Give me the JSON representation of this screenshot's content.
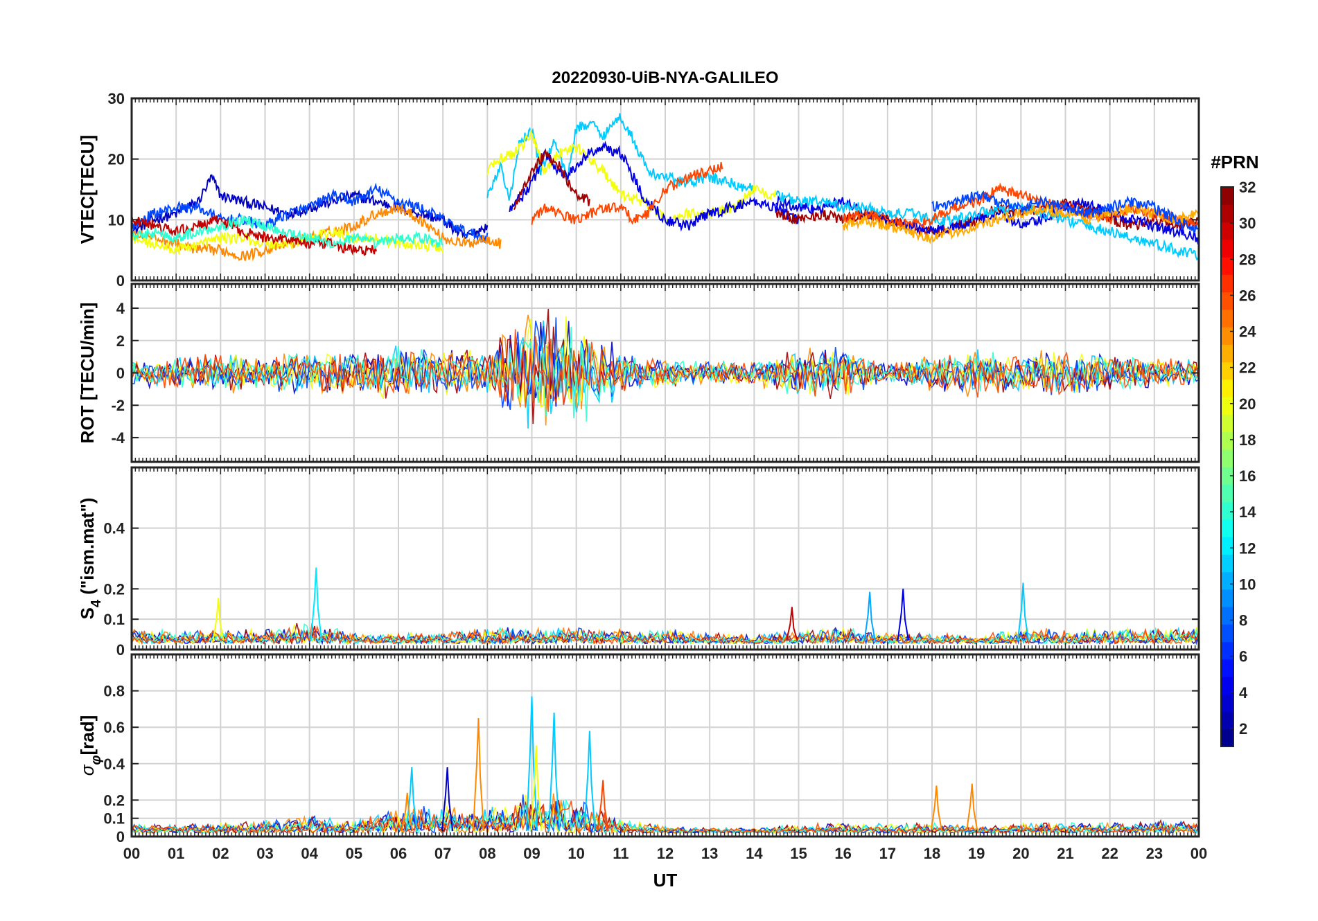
{
  "chart_data": {
    "type": "line",
    "title": "20220930-UiB-NYA-GALILEO",
    "xlabel": "UT",
    "x_ticks": [
      "00",
      "01",
      "02",
      "03",
      "04",
      "05",
      "06",
      "07",
      "08",
      "09",
      "10",
      "11",
      "12",
      "13",
      "14",
      "15",
      "16",
      "17",
      "18",
      "19",
      "20",
      "21",
      "22",
      "23",
      "00"
    ],
    "xlim": [
      0,
      24
    ],
    "grid": true,
    "colorbar": {
      "title": "#PRN",
      "ticks": [
        2,
        4,
        6,
        8,
        10,
        12,
        14,
        16,
        18,
        20,
        22,
        24,
        26,
        28,
        30,
        32
      ],
      "range": [
        1,
        32
      ],
      "colormap": "jet"
    },
    "panels": [
      {
        "id": "vtec",
        "ylabel": "VTEC[TECU]",
        "ylim": [
          0,
          30
        ],
        "yticks": [
          0,
          10,
          20,
          30
        ],
        "series": [
          {
            "prn": 3,
            "x": [
              0,
              0.5,
              1,
              1.5,
              1.8,
              2,
              2.5,
              3,
              3.5,
              4,
              4.5,
              5,
              5.5,
              6,
              6.5,
              7,
              7.5,
              8
            ],
            "y": [
              8,
              10,
              11,
              13,
              17,
              14,
              13,
              12,
              11,
              12,
              13,
              14,
              13,
              12,
              11,
              10,
              7,
              9
            ]
          },
          {
            "prn": 7,
            "x": [
              0,
              0.5,
              1,
              1.5,
              2,
              2.5,
              3,
              3.5,
              4,
              4.5,
              5,
              5.5,
              6,
              6.5,
              7,
              7.5,
              8
            ],
            "y": [
              9,
              11,
              12,
              12,
              10,
              10,
              9,
              11,
              12,
              14,
              13,
              15,
              13,
              12,
              10,
              8,
              7
            ]
          },
          {
            "prn": 24,
            "x": [
              0,
              0.5,
              1,
              1.5,
              2,
              2.5,
              3,
              3.5,
              4,
              4.5,
              5,
              5.5,
              6,
              6.5,
              7,
              7.5,
              8,
              8.3
            ],
            "y": [
              8,
              7,
              6,
              5,
              5,
              4,
              5,
              6,
              7,
              8,
              9,
              11,
              12,
              10,
              7,
              6,
              7,
              6
            ]
          },
          {
            "prn": 20,
            "x": [
              0,
              0.5,
              1,
              1.5,
              2,
              2.5,
              3,
              3.5,
              4,
              4.5,
              5,
              5.5,
              6,
              6.5,
              7
            ],
            "y": [
              7,
              6,
              5,
              6,
              7,
              7,
              6,
              6,
              7,
              8,
              7,
              7,
              6,
              6,
              5
            ]
          },
          {
            "prn": 30,
            "x": [
              0,
              0.5,
              1,
              1.5,
              2,
              2.5,
              3,
              3.5,
              4,
              4.5,
              5,
              5.5
            ],
            "y": [
              10,
              9,
              8,
              9,
              10,
              8,
              7,
              7,
              6,
              6,
              5,
              5
            ]
          },
          {
            "prn": 14,
            "x": [
              0,
              0.5,
              1,
              1.5,
              2,
              2.5,
              3,
              3.5,
              4,
              4.5,
              5,
              5.5,
              6,
              6.5,
              7
            ],
            "y": [
              7,
              8,
              7,
              8,
              9,
              10,
              9,
              8,
              7,
              6,
              7,
              6,
              7,
              7,
              6
            ]
          },
          {
            "prn": 11,
            "x": [
              8,
              8.3,
              8.5,
              8.7,
              9,
              9.2,
              9.5,
              9.8,
              10,
              10.3,
              10.6,
              11,
              11.3,
              11.6,
              12,
              12.5,
              13,
              13.5,
              14
            ],
            "y": [
              14,
              19,
              13,
              22,
              25,
              18,
              23,
              17,
              25,
              26,
              24,
              27,
              23,
              18,
              17,
              16,
              17,
              16,
              15
            ]
          },
          {
            "prn": 20,
            "x": [
              8,
              8.3,
              8.6,
              9,
              9.3,
              9.6,
              10,
              10.3,
              10.6,
              11,
              11.5,
              12,
              12.5,
              13,
              13.5,
              14,
              14.5
            ],
            "y": [
              18,
              20,
              21,
              24,
              18,
              21,
              22,
              20,
              18,
              14,
              13,
              10,
              11,
              11,
              12,
              15,
              14
            ]
          },
          {
            "prn": 4,
            "x": [
              8.5,
              8.8,
              9,
              9.3,
              9.5,
              9.8,
              10,
              10.3,
              10.6,
              11,
              11.5,
              12,
              12.5,
              13,
              13.5,
              14,
              14.5,
              15
            ],
            "y": [
              12,
              14,
              16,
              21,
              19,
              17,
              19,
              21,
              22,
              21,
              14,
              10,
              9,
              11,
              12,
              13,
              12,
              10
            ]
          },
          {
            "prn": 26,
            "x": [
              9,
              9.3,
              9.6,
              10,
              10.3,
              10.6,
              11,
              11.3,
              11.6,
              12,
              12.5,
              13,
              13.3
            ],
            "y": [
              10,
              12,
              11,
              10,
              11,
              12,
              12,
              10,
              11,
              15,
              17,
              18,
              19
            ]
          },
          {
            "prn": 31,
            "x": [
              8.6,
              9,
              9.3,
              9.6,
              10,
              10.3
            ],
            "y": [
              12,
              18,
              21,
              19,
              14,
              13
            ]
          },
          {
            "prn": 31,
            "x": [
              14.5,
              15,
              15.5,
              16,
              16.5,
              17,
              17.5,
              18,
              18.5,
              19,
              19.5,
              20,
              20.5,
              21,
              21.5,
              22,
              22.5,
              23,
              23.5,
              24
            ],
            "y": [
              11,
              10,
              11,
              10,
              11,
              10,
              9,
              8,
              9,
              10,
              12,
              11,
              12,
              13,
              12,
              10,
              9,
              10,
              9,
              10
            ]
          },
          {
            "prn": 4,
            "x": [
              14.5,
              15,
              15.5,
              16,
              16.5,
              17,
              17.5,
              18,
              18.5,
              19,
              19.5,
              20,
              20.5,
              21,
              21.5,
              22,
              22.5,
              23,
              23.5,
              24
            ],
            "y": [
              13,
              12,
              12,
              13,
              11,
              10,
              9,
              8,
              9,
              10,
              11,
              9,
              10,
              12,
              13,
              11,
              10,
              9,
              8,
              7
            ]
          },
          {
            "prn": 11,
            "x": [
              14.5,
              15,
              15.5,
              16,
              16.5,
              17,
              17.5,
              18,
              18.5,
              19,
              19.5,
              20,
              20.5,
              21,
              21.5,
              22,
              22.5,
              23,
              23.5,
              24
            ],
            "y": [
              14,
              13,
              13,
              12,
              12,
              11,
              11,
              10,
              10,
              11,
              12,
              12,
              11,
              10,
              9,
              8,
              7,
              6,
              5,
              4
            ]
          },
          {
            "prn": 26,
            "x": [
              16,
              16.5,
              17,
              17.5,
              18,
              18.5,
              19,
              19.5,
              20,
              20.5,
              21,
              21.5,
              22,
              22.5,
              23,
              23.5,
              24
            ],
            "y": [
              10,
              11,
              10,
              9,
              10,
              12,
              13,
              15,
              14,
              13,
              12,
              11,
              10,
              12,
              11,
              10,
              9
            ]
          },
          {
            "prn": 23,
            "x": [
              16,
              16.5,
              17,
              17.5,
              18,
              18.5,
              19,
              19.5,
              20,
              20.5,
              21,
              21.5,
              22,
              22.5,
              23,
              23.5,
              24
            ],
            "y": [
              9,
              10,
              9,
              8,
              7,
              8,
              9,
              10,
              11,
              12,
              11,
              10,
              11,
              12,
              11,
              10,
              11
            ]
          },
          {
            "prn": 7,
            "x": [
              18,
              18.5,
              19,
              19.5,
              20,
              20.5,
              21,
              21.5,
              22,
              22.5,
              23,
              23.5,
              24
            ],
            "y": [
              12,
              13,
              14,
              13,
              12,
              13,
              12,
              11,
              12,
              13,
              12,
              10,
              8
            ]
          }
        ]
      },
      {
        "id": "rot",
        "ylabel": "ROT [TECU/min]",
        "ylim": [
          -5.5,
          5.5
        ],
        "yticks": [
          -4,
          -2,
          0,
          2,
          4
        ],
        "noise_envelope": {
          "x": [
            0,
            1,
            2,
            3,
            4,
            5,
            6,
            7,
            8,
            8.5,
            9,
            9.5,
            10,
            10.5,
            11,
            11.5,
            12,
            13,
            14,
            15,
            16,
            17,
            18,
            19,
            20,
            21,
            22,
            23,
            24
          ],
          "amplitude": [
            1.0,
            1.0,
            1.4,
            1.2,
            1.4,
            1.6,
            1.8,
            1.6,
            1.4,
            3.0,
            4.5,
            4.0,
            3.5,
            3.0,
            1.5,
            1.0,
            0.9,
            0.8,
            0.9,
            1.6,
            1.8,
            0.6,
            1.2,
            1.6,
            1.4,
            1.8,
            1.2,
            1.0,
            0.9
          ]
        },
        "series_prns": [
          3,
          11,
          24,
          31,
          20,
          7,
          14,
          26
        ]
      },
      {
        "id": "s4",
        "ylabel": "S4 (\"ism.mat\")",
        "ylabel_main": "S",
        "ylabel_sub": "4",
        "ylabel_rest": " (\"ism.mat\")",
        "ylim": [
          0,
          0.6
        ],
        "yticks": [
          0,
          0.1,
          0.2,
          0.4
        ],
        "noise_envelope": {
          "x": [
            0,
            1,
            2,
            3,
            4,
            5,
            6,
            7,
            8,
            9,
            10,
            11,
            12,
            13,
            14,
            15,
            16,
            17,
            18,
            19,
            20,
            21,
            22,
            23,
            24
          ],
          "amplitude": [
            0.06,
            0.04,
            0.05,
            0.05,
            0.08,
            0.04,
            0.04,
            0.04,
            0.06,
            0.05,
            0.06,
            0.05,
            0.05,
            0.04,
            0.03,
            0.05,
            0.06,
            0.04,
            0.04,
            0.03,
            0.06,
            0.05,
            0.05,
            0.06,
            0.06
          ]
        },
        "spikes": [
          {
            "prn": 12,
            "x": 4.15,
            "y": 0.27
          },
          {
            "prn": 20,
            "x": 1.95,
            "y": 0.17
          },
          {
            "prn": 4,
            "x": 17.35,
            "y": 0.2
          },
          {
            "prn": 11,
            "x": 20.05,
            "y": 0.22
          },
          {
            "prn": 10,
            "x": 16.6,
            "y": 0.19
          },
          {
            "prn": 30,
            "x": 14.85,
            "y": 0.14
          }
        ],
        "series_prns": [
          3,
          11,
          24,
          31,
          20,
          7,
          14,
          26
        ]
      },
      {
        "id": "sigma_phi",
        "ylabel": "σφ[rad]",
        "ylabel_main": "σ",
        "ylabel_sub": "φ",
        "ylabel_rest": "[rad]",
        "ylim": [
          0,
          1.0
        ],
        "yticks": [
          0,
          0.1,
          0.2,
          0.4,
          0.6,
          0.8
        ],
        "noise_envelope": {
          "x": [
            0,
            1,
            2,
            3,
            4,
            5,
            6,
            7,
            8,
            9,
            10,
            11,
            12,
            13,
            14,
            15,
            16,
            17,
            18,
            19,
            20,
            21,
            22,
            23,
            24
          ],
          "amplitude": [
            0.06,
            0.05,
            0.06,
            0.08,
            0.1,
            0.08,
            0.14,
            0.16,
            0.15,
            0.25,
            0.22,
            0.08,
            0.04,
            0.03,
            0.03,
            0.05,
            0.06,
            0.05,
            0.06,
            0.04,
            0.06,
            0.06,
            0.06,
            0.07,
            0.07
          ]
        },
        "spikes": [
          {
            "prn": 24,
            "x": 7.8,
            "y": 0.65
          },
          {
            "prn": 11,
            "x": 9.0,
            "y": 0.77
          },
          {
            "prn": 11,
            "x": 9.5,
            "y": 0.68
          },
          {
            "prn": 11,
            "x": 10.3,
            "y": 0.58
          },
          {
            "prn": 20,
            "x": 9.1,
            "y": 0.5
          },
          {
            "prn": 11,
            "x": 6.3,
            "y": 0.38
          },
          {
            "prn": 3,
            "x": 7.1,
            "y": 0.38
          },
          {
            "prn": 26,
            "x": 10.6,
            "y": 0.31
          },
          {
            "prn": 24,
            "x": 18.1,
            "y": 0.28
          },
          {
            "prn": 24,
            "x": 18.9,
            "y": 0.29
          },
          {
            "prn": 24,
            "x": 6.2,
            "y": 0.24
          }
        ],
        "series_prns": [
          3,
          11,
          24,
          31,
          20,
          7,
          14,
          26
        ]
      }
    ]
  }
}
